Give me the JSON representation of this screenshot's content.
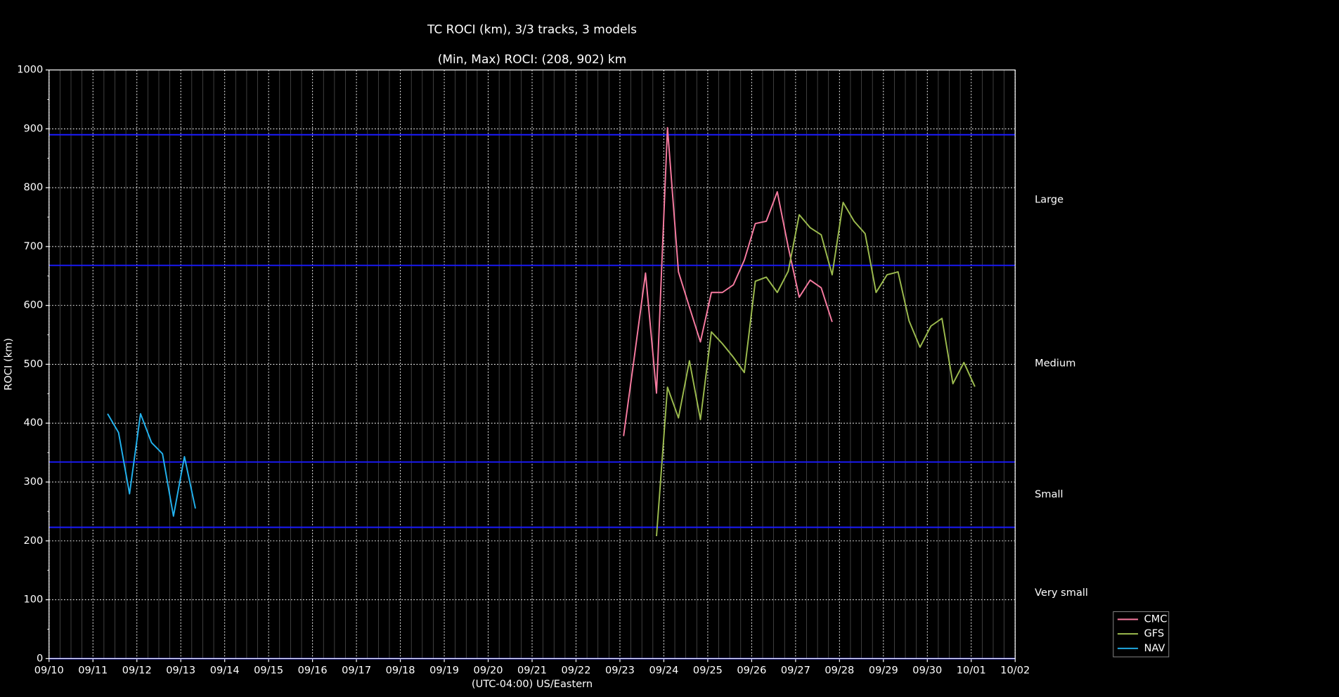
{
  "chart_data": {
    "type": "line",
    "title": "TC ROCI (km), 3/3 tracks, 3 models",
    "subtitle": "(Min, Max) ROCI: (208, 902) km",
    "x_label": "(UTC-04:00) US/Eastern",
    "y_label": "ROCI (km)",
    "xlim": [
      0,
      22
    ],
    "xticks": [
      {
        "value": 0,
        "label": "09/10"
      },
      {
        "value": 1,
        "label": "09/11"
      },
      {
        "value": 2,
        "label": "09/12"
      },
      {
        "value": 3,
        "label": "09/13"
      },
      {
        "value": 4,
        "label": "09/14"
      },
      {
        "value": 5,
        "label": "09/15"
      },
      {
        "value": 6,
        "label": "09/16"
      },
      {
        "value": 7,
        "label": "09/17"
      },
      {
        "value": 8,
        "label": "09/18"
      },
      {
        "value": 9,
        "label": "09/19"
      },
      {
        "value": 10,
        "label": "09/20"
      },
      {
        "value": 11,
        "label": "09/21"
      },
      {
        "value": 12,
        "label": "09/22"
      },
      {
        "value": 13,
        "label": "09/23"
      },
      {
        "value": 14,
        "label": "09/24"
      },
      {
        "value": 15,
        "label": "09/25"
      },
      {
        "value": 16,
        "label": "09/26"
      },
      {
        "value": 17,
        "label": "09/27"
      },
      {
        "value": 18,
        "label": "09/28"
      },
      {
        "value": 19,
        "label": "09/29"
      },
      {
        "value": 20,
        "label": "09/30"
      },
      {
        "value": 21,
        "label": "10/01"
      },
      {
        "value": 22,
        "label": "10/02"
      }
    ],
    "ylim": [
      0,
      1000
    ],
    "yticks": [
      0,
      100,
      200,
      300,
      400,
      500,
      600,
      700,
      800,
      900,
      1000
    ],
    "grid": true,
    "thresholds": [
      0,
      223,
      334,
      668,
      890
    ],
    "threshold_color": "#1a1aff",
    "threshold_labels": [
      "Very small",
      "Small",
      "Medium",
      "Large"
    ],
    "legend": "outside lower right",
    "series": [
      {
        "name": "CMC",
        "color": "#f77ba0",
        "x": [
          13.083,
          13.333,
          13.583,
          13.833,
          14.083,
          14.333,
          14.583,
          14.833,
          15.083,
          15.333,
          15.583,
          15.833,
          16.083,
          16.333,
          16.583,
          16.833,
          17.083,
          17.333,
          17.583,
          17.833
        ],
        "values": [
          378,
          515,
          655,
          451,
          902,
          657,
          597,
          538,
          622,
          622,
          635,
          677,
          739,
          743,
          793,
          699,
          614,
          643,
          630,
          572
        ]
      },
      {
        "name": "GFS",
        "color": "#9cbb4e",
        "x": [
          13.833,
          14.083,
          14.333,
          14.583,
          14.833,
          15.083,
          15.333,
          15.583,
          15.833,
          16.083,
          16.333,
          16.583,
          16.833,
          17.083,
          17.333,
          17.583,
          17.833,
          18.083,
          18.333,
          18.583,
          18.833,
          19.083,
          19.333,
          19.583,
          19.833,
          20.083,
          20.333,
          20.583,
          20.833,
          21.083
        ],
        "values": [
          208,
          461,
          409,
          506,
          406,
          555,
          535,
          512,
          486,
          641,
          648,
          622,
          658,
          754,
          732,
          720,
          652,
          775,
          743,
          722,
          622,
          652,
          657,
          574,
          529,
          565,
          578,
          467,
          503,
          462
        ]
      },
      {
        "name": "NAV",
        "color": "#22b2ee",
        "x": [
          1.333,
          1.583,
          1.833,
          2.083,
          2.333,
          2.583,
          2.833,
          3.083,
          3.333
        ],
        "values": [
          416,
          384,
          280,
          416,
          367,
          348,
          242,
          343,
          255
        ]
      }
    ]
  }
}
